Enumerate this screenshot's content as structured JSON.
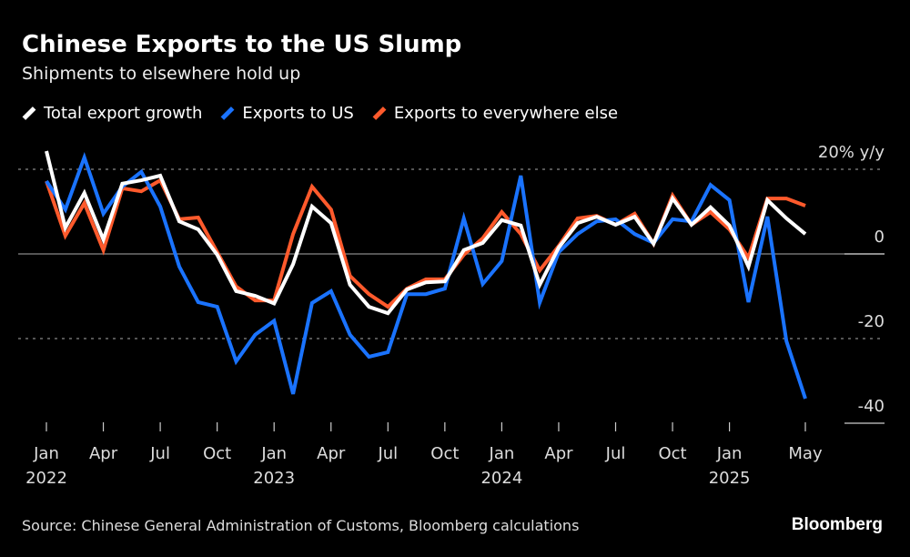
{
  "title": "Chinese Exports to the US Slump",
  "subtitle": "Shipments to elsewhere hold up",
  "source": "Source: Chinese General Administration of Customs, Bloomberg calculations",
  "logo": "Bloomberg",
  "chart_data": {
    "type": "line",
    "title": "Chinese Exports to the US Slump",
    "subtitle": "Shipments to elsewhere hold up",
    "ylim": [
      -40,
      25
    ],
    "yticks": [
      20,
      0,
      -20,
      -40
    ],
    "ytick_labels": [
      "20% y/y",
      "0",
      "-20",
      "-40"
    ],
    "grid": true,
    "legend_position": "top-left",
    "x_start": "2022-01",
    "x_end": "2025-05",
    "xtick_labels": [
      {
        "month": 0,
        "label": "Jan",
        "year": "2022"
      },
      {
        "month": 3,
        "label": "Apr",
        "year": ""
      },
      {
        "month": 6,
        "label": "Jul",
        "year": ""
      },
      {
        "month": 9,
        "label": "Oct",
        "year": ""
      },
      {
        "month": 12,
        "label": "Jan",
        "year": "2023"
      },
      {
        "month": 15,
        "label": "Apr",
        "year": ""
      },
      {
        "month": 18,
        "label": "Jul",
        "year": ""
      },
      {
        "month": 21,
        "label": "Oct",
        "year": ""
      },
      {
        "month": 24,
        "label": "Jan",
        "year": "2024"
      },
      {
        "month": 27,
        "label": "Apr",
        "year": ""
      },
      {
        "month": 30,
        "label": "Jul",
        "year": ""
      },
      {
        "month": 33,
        "label": "Oct",
        "year": ""
      },
      {
        "month": 36,
        "label": "Jan",
        "year": "2025"
      },
      {
        "month": 40,
        "label": "May",
        "year": ""
      }
    ],
    "series": [
      {
        "name": "Exports to everywhere else",
        "color": "#ff5a2c",
        "values": [
          17.2,
          4.3,
          12,
          0.9,
          15.5,
          14.8,
          17.4,
          8.2,
          8.6,
          0.4,
          -7.7,
          -11,
          -11,
          4.7,
          15.9,
          10.5,
          -5.2,
          -9.5,
          -12.5,
          -8.2,
          -6,
          -6,
          -0.2,
          3.7,
          9.9,
          4.7,
          -3.9,
          1.9,
          8.4,
          9,
          6.9,
          9.5,
          2.4,
          13.8,
          6.9,
          9.9,
          5.8,
          -0.9,
          13.1,
          13.1,
          11.4
        ]
      },
      {
        "name": "Exports to US",
        "color": "#1a73ff",
        "values": [
          17.2,
          10.5,
          22.8,
          9.5,
          15.9,
          19.4,
          11.2,
          -3,
          -11.4,
          -12.5,
          -25.4,
          -19.1,
          -15.8,
          -33.1,
          -11.6,
          -8.8,
          -19.1,
          -24.3,
          -23.2,
          -9.5,
          -9.5,
          -8.2,
          8.4,
          -7.1,
          -1.7,
          18.5,
          -11.5,
          0.4,
          4.7,
          7.7,
          8.2,
          4.7,
          2.6,
          8.2,
          7.7,
          16.3,
          12.7,
          -11.4,
          8.8,
          -20.6,
          -34.2
        ]
      },
      {
        "name": "Total export growth",
        "color": "#ffffff",
        "values": [
          24.3,
          6.2,
          14.4,
          3.4,
          16.6,
          17.4,
          18.5,
          7.7,
          5.8,
          -0.2,
          -8.8,
          -9.9,
          -11.7,
          -2.4,
          11.2,
          7.3,
          -7.3,
          -12.5,
          -14,
          -8.4,
          -6.7,
          -6.5,
          0.9,
          2.6,
          8,
          6.7,
          -7.3,
          1.5,
          7.3,
          8.8,
          6.9,
          8.8,
          2.4,
          13.1,
          6.9,
          11,
          6.7,
          -3,
          12.7,
          8.4,
          4.7
        ]
      }
    ]
  }
}
